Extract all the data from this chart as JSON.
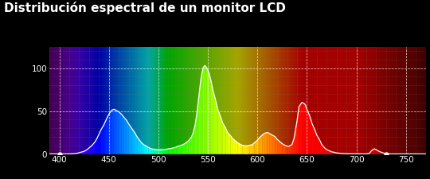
{
  "title": "Distribución espectral de un monitor LCD",
  "title_color": "#ffffff",
  "title_fontsize": 11,
  "title_fontweight": "bold",
  "background_color": "#000000",
  "plot_bg_color": "#000000",
  "xlim": [
    390,
    770
  ],
  "ylim": [
    0,
    125
  ],
  "xticks": [
    400,
    450,
    500,
    550,
    600,
    650,
    700,
    750
  ],
  "yticks": [
    0,
    50,
    100
  ],
  "tick_color": "#ffffff",
  "figsize": [
    5.4,
    2.25
  ],
  "dpi": 100,
  "wl_lcd": [
    390,
    395,
    400,
    405,
    410,
    415,
    418,
    420,
    425,
    428,
    430,
    433,
    436,
    438,
    440,
    442,
    445,
    447,
    449,
    451,
    453,
    455,
    457,
    460,
    463,
    465,
    468,
    470,
    473,
    476,
    479,
    481,
    483,
    485,
    488,
    490,
    493,
    495,
    498,
    500,
    503,
    505,
    508,
    510,
    513,
    515,
    518,
    520,
    523,
    525,
    528,
    530,
    533,
    535,
    537,
    539,
    541,
    543,
    545,
    547,
    549,
    551,
    553,
    555,
    558,
    560,
    563,
    565,
    568,
    570,
    573,
    575,
    578,
    580,
    583,
    585,
    588,
    590,
    592,
    595,
    597,
    600,
    602,
    605,
    607,
    610,
    612,
    615,
    618,
    620,
    623,
    625,
    628,
    630,
    632,
    635,
    637,
    640,
    642,
    645,
    648,
    650,
    653,
    655,
    658,
    660,
    663,
    665,
    668,
    670,
    673,
    675,
    678,
    680,
    683,
    685,
    688,
    690,
    693,
    695,
    698,
    700,
    703,
    705,
    708,
    710,
    713,
    715,
    718,
    720,
    722,
    725,
    728,
    730,
    733,
    735,
    740,
    745,
    750,
    755,
    760,
    765,
    770
  ],
  "val_lcd": [
    0,
    0,
    0,
    0,
    0,
    0.3,
    0.8,
    1.5,
    3,
    5,
    7,
    10,
    14,
    18,
    23,
    28,
    34,
    39,
    44,
    48,
    51,
    52,
    51,
    49,
    46,
    43,
    39,
    35,
    30,
    25,
    19,
    16,
    13,
    11,
    9,
    7.5,
    6,
    5.5,
    5,
    5,
    5,
    5,
    5.5,
    6,
    6.5,
    7,
    8,
    9,
    10,
    11,
    13,
    15,
    19,
    24,
    33,
    48,
    68,
    88,
    100,
    103,
    100,
    95,
    86,
    75,
    62,
    52,
    43,
    36,
    30,
    25,
    21,
    18,
    15,
    13,
    11,
    10,
    9.5,
    9.5,
    10,
    11,
    13,
    16,
    19,
    22,
    24,
    25,
    24,
    22,
    20,
    17,
    14,
    12,
    10,
    9,
    9,
    11,
    18,
    38,
    55,
    60,
    58,
    52,
    44,
    36,
    28,
    22,
    16,
    11,
    7,
    5,
    3.5,
    2.5,
    1.8,
    1.2,
    0.8,
    0.5,
    0.3,
    0.2,
    0.1,
    0.08,
    0.05,
    0.03,
    0.02,
    0.01,
    0.01,
    0.02,
    0.5,
    3.5,
    6,
    5,
    3.5,
    2,
    0.8,
    0.2,
    0,
    0,
    0,
    0,
    0,
    0,
    0,
    0,
    0
  ]
}
